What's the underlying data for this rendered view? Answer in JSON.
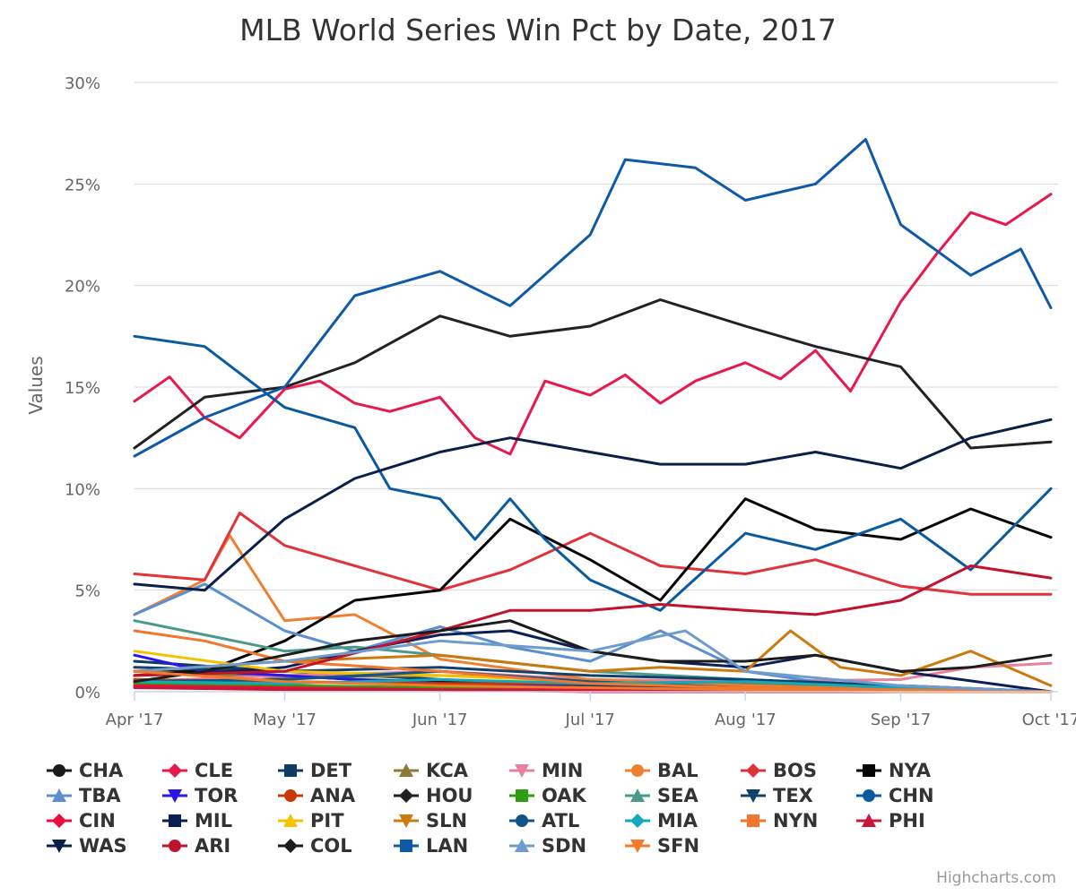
{
  "chart_data": {
    "type": "line",
    "title": "MLB World Series Win Pct by Date, 2017",
    "ylabel": "Values",
    "ylim": [
      0,
      30
    ],
    "yticks": [
      "0%",
      "5%",
      "10%",
      "15%",
      "20%",
      "25%",
      "30%"
    ],
    "x_range": [
      "2017-04-01",
      "2017-10-01"
    ],
    "xticks": [
      {
        "date": "2017-04-01",
        "label": "Apr '17"
      },
      {
        "date": "2017-05-01",
        "label": "May '17"
      },
      {
        "date": "2017-06-01",
        "label": "Jun '17"
      },
      {
        "date": "2017-07-01",
        "label": "Jul '17"
      },
      {
        "date": "2017-08-01",
        "label": "Aug '17"
      },
      {
        "date": "2017-09-01",
        "label": "Sep '17"
      },
      {
        "date": "2017-10-01",
        "label": "Oct '17"
      }
    ],
    "grid": true,
    "legend_position": "bottom",
    "credits": "Highcharts.com",
    "series": [
      {
        "name": "CHA",
        "color": "#1b1b1b",
        "symbol": "circle",
        "x": [
          "2017-04-01",
          "2017-04-15",
          "2017-05-01",
          "2017-05-15",
          "2017-06-01",
          "2017-06-15",
          "2017-07-01",
          "2017-07-15",
          "2017-08-01",
          "2017-08-15",
          "2017-09-01",
          "2017-09-15",
          "2017-10-01"
        ],
        "y": [
          1.0,
          1.0,
          0.8,
          0.6,
          0.5,
          0.4,
          0.3,
          0.2,
          0.1,
          0.1,
          0.0,
          0.0,
          0.0
        ]
      },
      {
        "name": "CLE",
        "color": "#e8194f",
        "symbol": "diamond",
        "x": [
          "2017-04-01",
          "2017-04-08",
          "2017-04-15",
          "2017-04-22",
          "2017-05-01",
          "2017-05-08",
          "2017-05-15",
          "2017-05-22",
          "2017-06-01",
          "2017-06-08",
          "2017-06-15",
          "2017-06-22",
          "2017-07-01",
          "2017-07-08",
          "2017-07-15",
          "2017-07-22",
          "2017-08-01",
          "2017-08-08",
          "2017-08-15",
          "2017-08-22",
          "2017-09-01",
          "2017-09-08",
          "2017-09-15",
          "2017-09-22",
          "2017-10-01"
        ],
        "y": [
          14.3,
          15.5,
          13.5,
          12.5,
          14.9,
          15.3,
          14.2,
          13.8,
          14.5,
          12.5,
          11.7,
          15.3,
          14.6,
          15.6,
          14.2,
          15.3,
          16.2,
          15.4,
          16.8,
          14.8,
          19.2,
          21.5,
          23.6,
          23.0,
          24.5
        ]
      },
      {
        "name": "DET",
        "color": "#0d3b66",
        "symbol": "square",
        "x": [
          "2017-04-01",
          "2017-05-01",
          "2017-06-01",
          "2017-07-01",
          "2017-08-01",
          "2017-09-01",
          "2017-10-01"
        ],
        "y": [
          1.5,
          1.0,
          0.6,
          0.3,
          0.1,
          0.0,
          0.0
        ]
      },
      {
        "name": "KCA",
        "color": "#8f7a3a",
        "symbol": "triangle",
        "x": [
          "2017-04-01",
          "2017-05-01",
          "2017-06-01",
          "2017-07-01",
          "2017-08-01",
          "2017-09-01",
          "2017-10-01"
        ],
        "y": [
          1.0,
          0.7,
          0.8,
          0.6,
          0.4,
          0.2,
          0.0
        ]
      },
      {
        "name": "MIN",
        "color": "#e6829b",
        "symbol": "triangle-down",
        "x": [
          "2017-04-01",
          "2017-05-01",
          "2017-06-01",
          "2017-07-01",
          "2017-08-01",
          "2017-09-01",
          "2017-09-15",
          "2017-10-01"
        ],
        "y": [
          0.5,
          0.8,
          1.0,
          0.6,
          0.5,
          0.6,
          1.2,
          1.4
        ]
      },
      {
        "name": "BAL",
        "color": "#f08030",
        "symbol": "circle",
        "x": [
          "2017-04-01",
          "2017-04-15",
          "2017-04-20",
          "2017-05-01",
          "2017-05-15",
          "2017-06-01",
          "2017-07-01",
          "2017-08-01",
          "2017-09-01",
          "2017-10-01"
        ],
        "y": [
          3.8,
          5.5,
          7.7,
          3.5,
          3.8,
          1.6,
          0.6,
          0.3,
          0.1,
          0.0
        ]
      },
      {
        "name": "BOS",
        "color": "#e0343c",
        "symbol": "diamond",
        "x": [
          "2017-04-01",
          "2017-04-15",
          "2017-04-22",
          "2017-05-01",
          "2017-05-15",
          "2017-06-01",
          "2017-06-15",
          "2017-07-01",
          "2017-07-15",
          "2017-08-01",
          "2017-08-15",
          "2017-09-01",
          "2017-09-15",
          "2017-10-01"
        ],
        "y": [
          5.8,
          5.5,
          8.8,
          7.2,
          6.2,
          5.0,
          6.0,
          7.8,
          6.2,
          5.8,
          6.5,
          5.2,
          4.8,
          4.8
        ]
      },
      {
        "name": "NYA",
        "color": "#050505",
        "symbol": "square",
        "x": [
          "2017-04-01",
          "2017-04-15",
          "2017-05-01",
          "2017-05-15",
          "2017-06-01",
          "2017-06-15",
          "2017-07-01",
          "2017-07-15",
          "2017-08-01",
          "2017-08-15",
          "2017-09-01",
          "2017-09-15",
          "2017-10-01"
        ],
        "y": [
          0.8,
          1.0,
          2.5,
          4.5,
          5.0,
          8.5,
          6.5,
          4.5,
          9.5,
          8.0,
          7.5,
          9.0,
          7.6
        ]
      },
      {
        "name": "TBA",
        "color": "#5b8fcf",
        "symbol": "triangle",
        "x": [
          "2017-04-01",
          "2017-04-15",
          "2017-05-01",
          "2017-05-15",
          "2017-06-01",
          "2017-06-15",
          "2017-07-01",
          "2017-07-15",
          "2017-08-01",
          "2017-08-15",
          "2017-09-01",
          "2017-10-01"
        ],
        "y": [
          3.8,
          5.3,
          3.0,
          2.0,
          3.2,
          2.2,
          1.5,
          3.0,
          1.0,
          0.5,
          0.2,
          0.0
        ]
      },
      {
        "name": "TOR",
        "color": "#2a16e8",
        "symbol": "triangle-down",
        "x": [
          "2017-04-01",
          "2017-04-15",
          "2017-05-01",
          "2017-05-15",
          "2017-06-01",
          "2017-07-01",
          "2017-08-01",
          "2017-09-01",
          "2017-10-01"
        ],
        "y": [
          1.8,
          1.0,
          0.8,
          0.6,
          0.4,
          0.2,
          0.1,
          0.0,
          0.0
        ]
      },
      {
        "name": "ANA",
        "color": "#c8380a",
        "symbol": "circle",
        "x": [
          "2017-04-01",
          "2017-05-01",
          "2017-06-01",
          "2017-07-01",
          "2017-08-01",
          "2017-09-01",
          "2017-10-01"
        ],
        "y": [
          0.6,
          0.5,
          0.4,
          0.4,
          0.5,
          0.3,
          0.0
        ]
      },
      {
        "name": "HOU",
        "color": "#222222",
        "symbol": "diamond",
        "x": [
          "2017-04-01",
          "2017-04-15",
          "2017-05-01",
          "2017-05-15",
          "2017-06-01",
          "2017-06-15",
          "2017-07-01",
          "2017-07-15",
          "2017-08-01",
          "2017-08-15",
          "2017-09-01",
          "2017-09-15",
          "2017-10-01"
        ],
        "y": [
          12.0,
          14.5,
          15.0,
          16.2,
          18.5,
          17.5,
          18.0,
          19.3,
          18.0,
          17.0,
          16.0,
          12.0,
          12.3
        ]
      },
      {
        "name": "OAK",
        "color": "#2e9e12",
        "symbol": "square",
        "x": [
          "2017-04-01",
          "2017-05-01",
          "2017-06-01",
          "2017-07-01",
          "2017-08-01",
          "2017-09-01",
          "2017-10-01"
        ],
        "y": [
          0.4,
          0.3,
          0.2,
          0.1,
          0.0,
          0.0,
          0.0
        ]
      },
      {
        "name": "SEA",
        "color": "#4a9a8a",
        "symbol": "triangle",
        "x": [
          "2017-04-01",
          "2017-04-15",
          "2017-05-01",
          "2017-05-15",
          "2017-06-01",
          "2017-07-01",
          "2017-08-01",
          "2017-09-01",
          "2017-10-01"
        ],
        "y": [
          3.5,
          2.8,
          2.0,
          2.2,
          1.8,
          1.0,
          0.6,
          0.2,
          0.0
        ]
      },
      {
        "name": "TEX",
        "color": "#14406e",
        "symbol": "triangle-down",
        "x": [
          "2017-04-01",
          "2017-05-01",
          "2017-06-01",
          "2017-07-01",
          "2017-08-01",
          "2017-09-01",
          "2017-10-01"
        ],
        "y": [
          1.2,
          1.0,
          1.2,
          0.8,
          0.6,
          0.3,
          0.0
        ]
      },
      {
        "name": "CHN",
        "color": "#0b5aa0",
        "symbol": "circle",
        "x": [
          "2017-04-01",
          "2017-04-15",
          "2017-05-01",
          "2017-05-15",
          "2017-05-22",
          "2017-06-01",
          "2017-06-08",
          "2017-06-15",
          "2017-06-22",
          "2017-07-01",
          "2017-07-15",
          "2017-08-01",
          "2017-08-15",
          "2017-09-01",
          "2017-09-15",
          "2017-10-01"
        ],
        "y": [
          17.5,
          17.0,
          14.0,
          13.0,
          10.0,
          9.5,
          7.5,
          9.5,
          7.5,
          5.5,
          4.0,
          7.8,
          7.0,
          8.5,
          6.0,
          10.0
        ]
      },
      {
        "name": "CIN",
        "color": "#e8103a",
        "symbol": "diamond",
        "x": [
          "2017-04-01",
          "2017-05-01",
          "2017-06-01",
          "2017-07-01",
          "2017-08-01",
          "2017-09-01",
          "2017-10-01"
        ],
        "y": [
          0.3,
          0.2,
          0.1,
          0.1,
          0.0,
          0.0,
          0.0
        ]
      },
      {
        "name": "MIL",
        "color": "#0c1f55",
        "symbol": "square",
        "x": [
          "2017-04-01",
          "2017-04-15",
          "2017-05-01",
          "2017-05-15",
          "2017-06-01",
          "2017-06-15",
          "2017-07-01",
          "2017-07-15",
          "2017-08-01",
          "2017-08-15",
          "2017-09-01",
          "2017-10-01"
        ],
        "y": [
          0.8,
          0.9,
          1.2,
          2.0,
          2.8,
          3.0,
          2.0,
          1.5,
          1.2,
          1.8,
          1.0,
          0.0
        ]
      },
      {
        "name": "PIT",
        "color": "#f6c200",
        "symbol": "triangle",
        "x": [
          "2017-04-01",
          "2017-05-01",
          "2017-06-01",
          "2017-07-01",
          "2017-08-01",
          "2017-09-01",
          "2017-10-01"
        ],
        "y": [
          2.0,
          1.0,
          0.8,
          0.5,
          0.2,
          0.1,
          0.0
        ]
      },
      {
        "name": "SLN",
        "color": "#cc7a10",
        "symbol": "triangle-down",
        "x": [
          "2017-04-01",
          "2017-05-01",
          "2017-06-01",
          "2017-07-01",
          "2017-07-15",
          "2017-08-01",
          "2017-08-10",
          "2017-08-20",
          "2017-09-01",
          "2017-09-15",
          "2017-10-01"
        ],
        "y": [
          1.0,
          1.5,
          1.8,
          1.0,
          1.2,
          1.0,
          3.0,
          1.2,
          0.8,
          2.0,
          0.3
        ]
      },
      {
        "name": "ATL",
        "color": "#10548a",
        "symbol": "circle",
        "x": [
          "2017-04-01",
          "2017-05-01",
          "2017-06-01",
          "2017-07-01",
          "2017-08-01",
          "2017-09-01",
          "2017-10-01"
        ],
        "y": [
          0.5,
          0.6,
          1.0,
          0.5,
          0.2,
          0.1,
          0.0
        ]
      },
      {
        "name": "MIA",
        "color": "#12aabb",
        "symbol": "diamond",
        "x": [
          "2017-04-01",
          "2017-05-01",
          "2017-06-01",
          "2017-07-01",
          "2017-08-01",
          "2017-09-01",
          "2017-10-01"
        ],
        "y": [
          0.5,
          0.4,
          0.6,
          0.4,
          0.5,
          0.2,
          0.0
        ]
      },
      {
        "name": "NYN",
        "color": "#f2762e",
        "symbol": "square",
        "x": [
          "2017-04-01",
          "2017-04-15",
          "2017-05-01",
          "2017-06-01",
          "2017-07-01",
          "2017-08-01",
          "2017-09-01",
          "2017-10-01"
        ],
        "y": [
          3.0,
          2.5,
          1.5,
          1.0,
          0.4,
          0.2,
          0.1,
          0.0
        ]
      },
      {
        "name": "PHI",
        "color": "#c8183a",
        "symbol": "triangle",
        "x": [
          "2017-04-01",
          "2017-05-01",
          "2017-06-01",
          "2017-07-01",
          "2017-08-01",
          "2017-09-01",
          "2017-10-01"
        ],
        "y": [
          0.2,
          0.1,
          0.1,
          0.0,
          0.0,
          0.0,
          0.0
        ]
      },
      {
        "name": "WAS",
        "color": "#0a2048",
        "symbol": "triangle-down",
        "x": [
          "2017-04-01",
          "2017-04-15",
          "2017-05-01",
          "2017-05-15",
          "2017-06-01",
          "2017-06-15",
          "2017-07-01",
          "2017-07-15",
          "2017-08-01",
          "2017-08-15",
          "2017-09-01",
          "2017-09-15",
          "2017-10-01"
        ],
        "y": [
          5.3,
          5.0,
          8.5,
          10.5,
          11.8,
          12.5,
          11.8,
          11.2,
          11.2,
          11.8,
          11.0,
          12.5,
          13.4
        ]
      },
      {
        "name": "ARI",
        "color": "#c0142c",
        "symbol": "circle",
        "x": [
          "2017-04-01",
          "2017-05-01",
          "2017-06-01",
          "2017-06-15",
          "2017-07-01",
          "2017-07-15",
          "2017-08-01",
          "2017-08-15",
          "2017-09-01",
          "2017-09-15",
          "2017-10-01"
        ],
        "y": [
          0.8,
          1.0,
          3.0,
          4.0,
          4.0,
          4.3,
          4.0,
          3.8,
          4.5,
          6.2,
          5.6
        ]
      },
      {
        "name": "COL",
        "color": "#1c1c1c",
        "symbol": "diamond",
        "x": [
          "2017-04-01",
          "2017-04-15",
          "2017-05-01",
          "2017-05-15",
          "2017-06-01",
          "2017-06-15",
          "2017-07-01",
          "2017-07-15",
          "2017-08-01",
          "2017-08-15",
          "2017-09-01",
          "2017-09-15",
          "2017-10-01"
        ],
        "y": [
          0.5,
          1.0,
          1.8,
          2.5,
          3.0,
          3.5,
          2.0,
          1.5,
          1.5,
          1.8,
          1.0,
          1.2,
          1.8
        ]
      },
      {
        "name": "LAN",
        "color": "#0e5aa8",
        "symbol": "square",
        "x": [
          "2017-04-01",
          "2017-04-15",
          "2017-05-01",
          "2017-05-15",
          "2017-06-01",
          "2017-06-15",
          "2017-07-01",
          "2017-07-08",
          "2017-07-22",
          "2017-08-01",
          "2017-08-15",
          "2017-08-25",
          "2017-09-01",
          "2017-09-15",
          "2017-09-25",
          "2017-10-01"
        ],
        "y": [
          11.6,
          13.5,
          15.0,
          19.5,
          20.7,
          19.0,
          22.5,
          26.2,
          25.8,
          24.2,
          25.0,
          27.2,
          23.0,
          20.5,
          21.8,
          18.9
        ]
      },
      {
        "name": "SDN",
        "color": "#6e9ccc",
        "symbol": "triangle",
        "x": [
          "2017-04-01",
          "2017-05-01",
          "2017-06-01",
          "2017-07-01",
          "2017-07-20",
          "2017-08-01",
          "2017-09-01",
          "2017-10-01"
        ],
        "y": [
          1.0,
          1.5,
          2.5,
          2.0,
          3.0,
          1.0,
          0.3,
          0.0
        ]
      },
      {
        "name": "SFN",
        "color": "#f47a2a",
        "symbol": "triangle-down",
        "x": [
          "2017-04-01",
          "2017-05-01",
          "2017-06-01",
          "2017-07-01",
          "2017-08-01",
          "2017-09-01",
          "2017-10-01"
        ],
        "y": [
          1.0,
          0.5,
          0.3,
          0.2,
          0.1,
          0.0,
          0.0
        ]
      }
    ]
  }
}
